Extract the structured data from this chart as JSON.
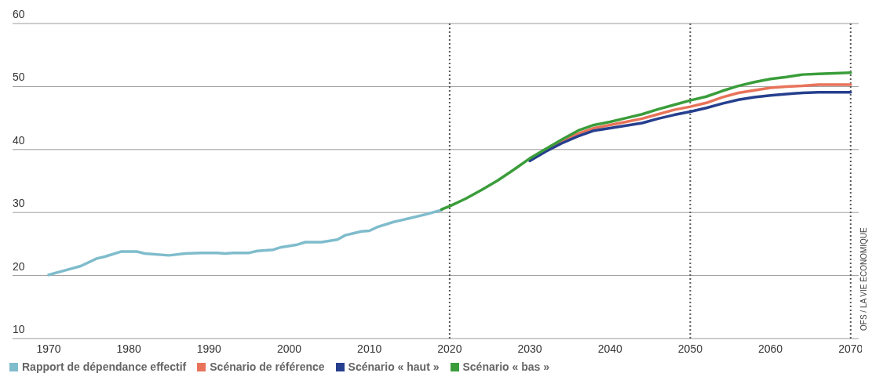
{
  "chart_data": {
    "type": "line",
    "xlim": [
      1965.5,
      2071
    ],
    "xticks": [
      1970,
      1980,
      1990,
      2000,
      2010,
      2020,
      2030,
      2040,
      2050,
      2060,
      2070
    ],
    "ylim": [
      10,
      60
    ],
    "yticks": [
      10,
      20,
      30,
      40,
      50,
      60
    ],
    "grid": "y",
    "legend": "bottom",
    "line_style": "solid",
    "series": [
      {
        "name": "Rapport de dépendance effectif",
        "color": "#7fbccc",
        "x": [
          1970,
          1972,
          1974,
          1976,
          1977,
          1979,
          1981,
          1982,
          1985,
          1987,
          1989,
          1991,
          1992,
          1993,
          1995,
          1996,
          1998,
          1999,
          2001,
          2002,
          2004,
          2006,
          2007,
          2008,
          2009,
          2010,
          2011,
          2013,
          2015,
          2017,
          2019
        ],
        "values": [
          20.1,
          20.8,
          21.5,
          22.7,
          23.0,
          23.8,
          23.8,
          23.5,
          23.2,
          23.5,
          23.6,
          23.6,
          23.5,
          23.6,
          23.6,
          23.9,
          24.1,
          24.5,
          24.9,
          25.3,
          25.3,
          25.7,
          26.4,
          26.7,
          27.0,
          27.1,
          27.7,
          28.5,
          29.1,
          29.7,
          30.4
        ]
      },
      {
        "name": "Scénario de référence",
        "color": "#e8735a",
        "x": [
          2032,
          2034,
          2036,
          2038,
          2040,
          2042,
          2044,
          2046,
          2048,
          2050,
          2052,
          2054,
          2056,
          2058,
          2060,
          2062,
          2064,
          2066,
          2068,
          2070
        ],
        "values": [
          39.9,
          41.3,
          42.5,
          43.4,
          43.9,
          44.4,
          44.9,
          45.6,
          46.3,
          46.8,
          47.4,
          48.3,
          49.0,
          49.4,
          49.8,
          50.0,
          50.1,
          50.3,
          50.3,
          50.3
        ]
      },
      {
        "name": "Scénario « haut »",
        "color": "#263f8e",
        "x": [
          2030,
          2032,
          2034,
          2036,
          2038,
          2040,
          2042,
          2044,
          2046,
          2048,
          2050,
          2052,
          2054,
          2056,
          2058,
          2060,
          2062,
          2064,
          2066,
          2068,
          2070
        ],
        "values": [
          38.2,
          39.7,
          41.0,
          42.1,
          43.0,
          43.4,
          43.8,
          44.2,
          44.9,
          45.5,
          46.0,
          46.6,
          47.3,
          47.9,
          48.3,
          48.6,
          48.8,
          49.0,
          49.1,
          49.1,
          49.1
        ]
      },
      {
        "name": "Scénario « bas »",
        "color": "#3a9d3a",
        "x": [
          2019,
          2020,
          2022,
          2024,
          2026,
          2028,
          2030,
          2032,
          2034,
          2036,
          2038,
          2040,
          2042,
          2044,
          2046,
          2048,
          2050,
          2052,
          2054,
          2056,
          2058,
          2060,
          2062,
          2064,
          2066,
          2068,
          2070
        ],
        "values": [
          30.5,
          31.0,
          32.2,
          33.6,
          35.1,
          36.8,
          38.6,
          40.1,
          41.6,
          43.0,
          43.9,
          44.4,
          45.0,
          45.6,
          46.4,
          47.1,
          47.8,
          48.4,
          49.3,
          50.1,
          50.7,
          51.2,
          51.5,
          51.9,
          52.0,
          52.1,
          52.2
        ]
      }
    ],
    "ref_lines": [
      {
        "axis": "x",
        "value": 2020,
        "color": "#555555",
        "line_style": "dotted"
      },
      {
        "axis": "x",
        "value": 2050,
        "color": "#555555",
        "line_style": "dotted"
      },
      {
        "axis": "x",
        "value": 2070,
        "color": "#555555",
        "line_style": "dotted"
      }
    ],
    "annotations": [
      "OFS / LA VIE ÉCONOMIQUE"
    ]
  }
}
